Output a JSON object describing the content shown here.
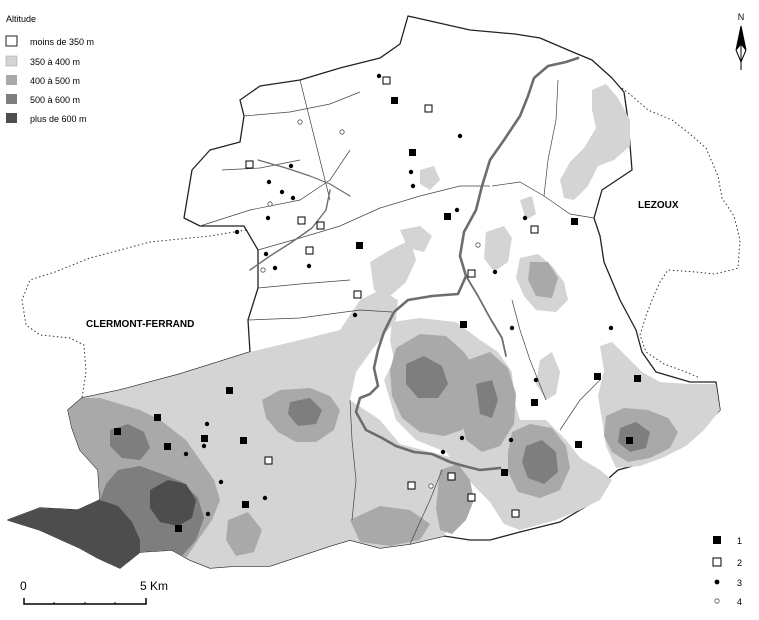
{
  "legend": {
    "title": "Altitude",
    "classes": [
      {
        "label": "moins de 350 m",
        "color": "#ffffff"
      },
      {
        "label": "350 à 400 m",
        "color": "#d4d4d4"
      },
      {
        "label": "400 à 500 m",
        "color": "#a9a9a9"
      },
      {
        "label": "500 à 600 m",
        "color": "#7e7e7e"
      },
      {
        "label": "plus de 600 m",
        "color": "#4d4d4d"
      }
    ]
  },
  "places": {
    "clermont": "CLERMONT-FERRAND",
    "lezoux": "LEZOUX"
  },
  "north": "N",
  "scale": {
    "start": "0",
    "end": "5 Km"
  },
  "site_legend": [
    {
      "symbol": "filled-square",
      "label": "1"
    },
    {
      "symbol": "open-square",
      "label": "2"
    },
    {
      "symbol": "filled-dot",
      "label": "3"
    },
    {
      "symbol": "open-dot",
      "label": "4"
    }
  ],
  "colors": {
    "outline": "#222222",
    "river": "#6d6d6d",
    "commune_boundary": "#444444",
    "level_350": "#d4d4d4",
    "level_400": "#a9a9a9",
    "level_500": "#7e7e7e",
    "level_600": "#4d4d4d"
  }
}
